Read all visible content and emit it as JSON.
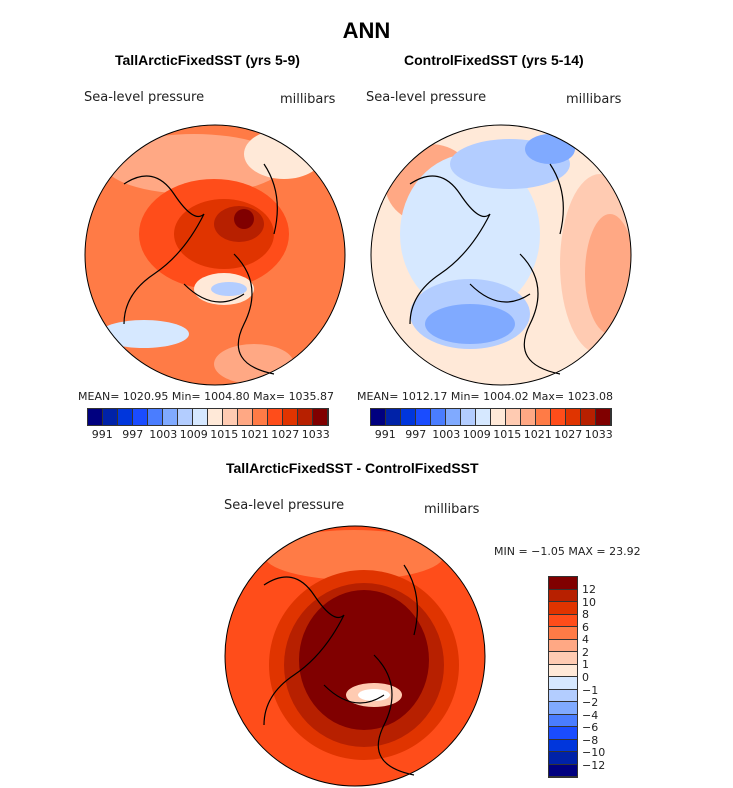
{
  "title": "ANN",
  "panels": [
    {
      "title": "TallArcticFixedSST (yrs 5-9)",
      "variable": "Sea-level pressure",
      "units": "millibars",
      "stats": "MEAN= 1020.95   Min= 1004.80   Max= 1035.87"
    },
    {
      "title": "ControlFixedSST (yrs 5-14)",
      "variable": "Sea-level pressure",
      "units": "millibars",
      "stats": "MEAN= 1012.17   Min= 1004.02   Max= 1023.08"
    },
    {
      "title": "TallArcticFixedSST - ControlFixedSST",
      "variable": "Sea-level pressure",
      "units": "millibars",
      "stats": "MIN =  −1.05  MAX =   23.92"
    }
  ],
  "colorbar_top": {
    "labels": [
      "991",
      "997",
      "1003",
      "1009",
      "1015",
      "1021",
      "1027",
      "1033"
    ]
  },
  "colorbar_diff": {
    "labels": [
      "12",
      "10",
      "8",
      "6",
      "4",
      "2",
      "1",
      "0",
      "−1",
      "−2",
      "−4",
      "−6",
      "−8",
      "−10",
      "−12"
    ]
  },
  "colors": [
    "#00007f",
    "#0022a8",
    "#0036dc",
    "#1a4cff",
    "#4a7dff",
    "#80aaff",
    "#b3cdff",
    "#d6e8ff",
    "#ffe9d8",
    "#ffcbb2",
    "#ffa884",
    "#ff7b46",
    "#ff4d1a",
    "#e03400",
    "#b72000",
    "#800000"
  ]
}
